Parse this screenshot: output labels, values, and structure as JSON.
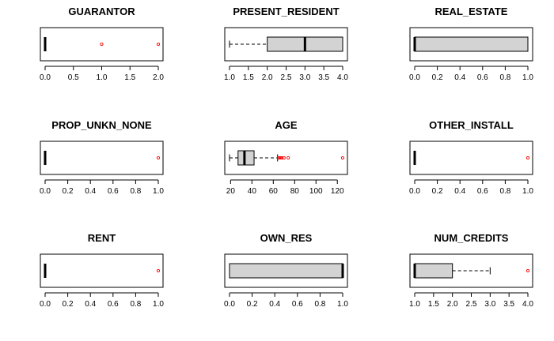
{
  "chart_data": [
    {
      "type": "boxplot",
      "title": "GUARANTOR",
      "orientation": "horizontal",
      "xlim": [
        0,
        2
      ],
      "ticks": [
        0,
        0.5,
        1,
        1.5,
        2
      ],
      "tick_labels": [
        "0.0",
        "0.5",
        "1.0",
        "1.5",
        "2.0"
      ],
      "stats": {
        "whisker_low": 0,
        "q1": 0,
        "median": 0,
        "q3": 0,
        "whisker_high": 0
      },
      "outliers": [
        1,
        2
      ]
    },
    {
      "type": "boxplot",
      "title": "PRESENT_RESIDENT",
      "orientation": "horizontal",
      "xlim": [
        1,
        4
      ],
      "ticks": [
        1,
        1.5,
        2,
        2.5,
        3,
        3.5,
        4
      ],
      "tick_labels": [
        "1.0",
        "1.5",
        "2.0",
        "2.5",
        "3.0",
        "3.5",
        "4.0"
      ],
      "stats": {
        "whisker_low": 1,
        "q1": 2,
        "median": 3,
        "q3": 4,
        "whisker_high": 4
      },
      "outliers": []
    },
    {
      "type": "boxplot",
      "title": "REAL_ESTATE",
      "orientation": "horizontal",
      "xlim": [
        0,
        1
      ],
      "ticks": [
        0,
        0.2,
        0.4,
        0.6,
        0.8,
        1
      ],
      "tick_labels": [
        "0.0",
        "0.2",
        "0.4",
        "0.6",
        "0.8",
        "1.0"
      ],
      "stats": {
        "whisker_low": 0,
        "q1": 0,
        "median": 0,
        "q3": 1,
        "whisker_high": 1
      },
      "outliers": []
    },
    {
      "type": "boxplot",
      "title": "PROP_UNKN_NONE",
      "orientation": "horizontal",
      "xlim": [
        0,
        1
      ],
      "ticks": [
        0,
        0.2,
        0.4,
        0.6,
        0.8,
        1
      ],
      "tick_labels": [
        "0.0",
        "0.2",
        "0.4",
        "0.6",
        "0.8",
        "1.0"
      ],
      "stats": {
        "whisker_low": 0,
        "q1": 0,
        "median": 0,
        "q3": 0,
        "whisker_high": 0
      },
      "outliers": [
        1
      ]
    },
    {
      "type": "boxplot",
      "title": "AGE",
      "orientation": "horizontal",
      "xlim": [
        19,
        125
      ],
      "ticks": [
        20,
        40,
        60,
        80,
        100,
        120
      ],
      "tick_labels": [
        "20",
        "40",
        "60",
        "80",
        "100",
        "120"
      ],
      "stats": {
        "whisker_low": 19,
        "q1": 27,
        "median": 33,
        "q3": 42,
        "whisker_high": 64
      },
      "outliers": [
        65,
        66,
        67,
        68,
        70,
        74,
        125
      ]
    },
    {
      "type": "boxplot",
      "title": "OTHER_INSTALL",
      "orientation": "horizontal",
      "xlim": [
        0,
        1
      ],
      "ticks": [
        0,
        0.2,
        0.4,
        0.6,
        0.8,
        1
      ],
      "tick_labels": [
        "0.0",
        "0.2",
        "0.4",
        "0.6",
        "0.8",
        "1.0"
      ],
      "stats": {
        "whisker_low": 0,
        "q1": 0,
        "median": 0,
        "q3": 0,
        "whisker_high": 0
      },
      "outliers": [
        1
      ]
    },
    {
      "type": "boxplot",
      "title": "RENT",
      "orientation": "horizontal",
      "xlim": [
        0,
        1
      ],
      "ticks": [
        0,
        0.2,
        0.4,
        0.6,
        0.8,
        1
      ],
      "tick_labels": [
        "0.0",
        "0.2",
        "0.4",
        "0.6",
        "0.8",
        "1.0"
      ],
      "stats": {
        "whisker_low": 0,
        "q1": 0,
        "median": 0,
        "q3": 0,
        "whisker_high": 0
      },
      "outliers": [
        1
      ]
    },
    {
      "type": "boxplot",
      "title": "OWN_RES",
      "orientation": "horizontal",
      "xlim": [
        0,
        1
      ],
      "ticks": [
        0,
        0.2,
        0.4,
        0.6,
        0.8,
        1
      ],
      "tick_labels": [
        "0.0",
        "0.2",
        "0.4",
        "0.6",
        "0.8",
        "1.0"
      ],
      "stats": {
        "whisker_low": 0,
        "q1": 0,
        "median": 1,
        "q3": 1,
        "whisker_high": 1
      },
      "outliers": []
    },
    {
      "type": "boxplot",
      "title": "NUM_CREDITS",
      "orientation": "horizontal",
      "xlim": [
        1,
        4
      ],
      "ticks": [
        1,
        1.5,
        2,
        2.5,
        3,
        3.5,
        4
      ],
      "tick_labels": [
        "1.0",
        "1.5",
        "2.0",
        "2.5",
        "3.0",
        "3.5",
        "4.0"
      ],
      "stats": {
        "whisker_low": 1,
        "q1": 1,
        "median": 1,
        "q3": 2,
        "whisker_high": 3
      },
      "outliers": [
        4
      ]
    }
  ],
  "colors": {
    "box_fill": "#d3d3d3",
    "outlier": "#ff0000",
    "line": "#000000"
  }
}
